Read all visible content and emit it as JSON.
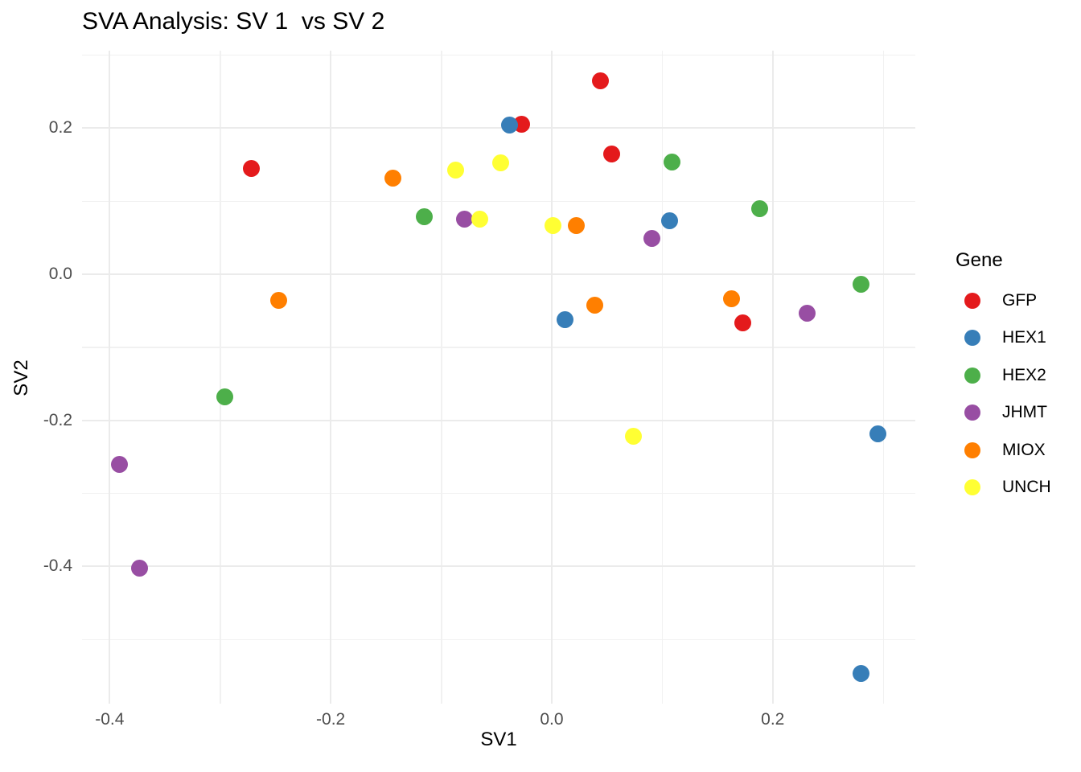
{
  "chart_data": {
    "type": "scatter",
    "title": "SVA Analysis: SV 1  vs SV 2",
    "xlabel": "SV1",
    "ylabel": "SV2",
    "legend_title": "Gene",
    "legend_position": "right",
    "grid": "on",
    "background": "#ffffff",
    "grid_color": "#EBEBEB",
    "tick_label_color": "#4D4D4D",
    "xlim": [
      -0.425,
      0.329
    ],
    "ylim": [
      -0.588,
      0.306
    ],
    "x_axis": {
      "tick_values": [
        -0.4,
        -0.2,
        0.0,
        0.2
      ],
      "tick_labels": [
        "-0.4",
        "-0.2",
        "0.0",
        "0.2"
      ],
      "minor_tick_values": [
        -0.3,
        -0.1,
        0.1,
        0.3
      ]
    },
    "y_axis": {
      "tick_values": [
        0.2,
        0.0,
        -0.2,
        -0.4
      ],
      "tick_labels": [
        "0.2",
        "0.0",
        "-0.2",
        "-0.4"
      ],
      "minor_tick_values": [
        0.3,
        0.1,
        -0.1,
        -0.3,
        -0.5
      ]
    },
    "series": [
      {
        "name": "GFP",
        "color": "#E41A1C",
        "points": [
          [
            -0.272,
            0.145
          ],
          [
            -0.027,
            0.205
          ],
          [
            0.044,
            0.265
          ],
          [
            0.054,
            0.164
          ],
          [
            0.173,
            -0.067
          ]
        ]
      },
      {
        "name": "HEX1",
        "color": "#377EB8",
        "points": [
          [
            -0.038,
            0.204
          ],
          [
            0.012,
            -0.062
          ],
          [
            0.107,
            0.073
          ],
          [
            0.28,
            -0.547
          ],
          [
            0.295,
            -0.219
          ]
        ]
      },
      {
        "name": "HEX2",
        "color": "#4DAF4A",
        "points": [
          [
            -0.296,
            -0.168
          ],
          [
            -0.115,
            0.079
          ],
          [
            0.109,
            0.153
          ],
          [
            0.188,
            0.09
          ],
          [
            0.28,
            -0.014
          ]
        ]
      },
      {
        "name": "JHMT",
        "color": "#984EA3",
        "points": [
          [
            -0.391,
            -0.26
          ],
          [
            -0.373,
            -0.403
          ],
          [
            -0.079,
            0.075
          ],
          [
            0.091,
            0.049
          ],
          [
            0.231,
            -0.053
          ]
        ]
      },
      {
        "name": "MIOX",
        "color": "#FF7F00",
        "points": [
          [
            -0.247,
            -0.036
          ],
          [
            -0.144,
            0.131
          ],
          [
            0.022,
            0.067
          ],
          [
            0.039,
            -0.043
          ],
          [
            0.163,
            -0.034
          ]
        ]
      },
      {
        "name": "UNCH",
        "color": "#FFFF33",
        "points": [
          [
            -0.087,
            0.142
          ],
          [
            -0.046,
            0.152
          ],
          [
            -0.065,
            0.075
          ],
          [
            0.001,
            0.067
          ],
          [
            0.074,
            -0.222
          ]
        ]
      }
    ]
  }
}
